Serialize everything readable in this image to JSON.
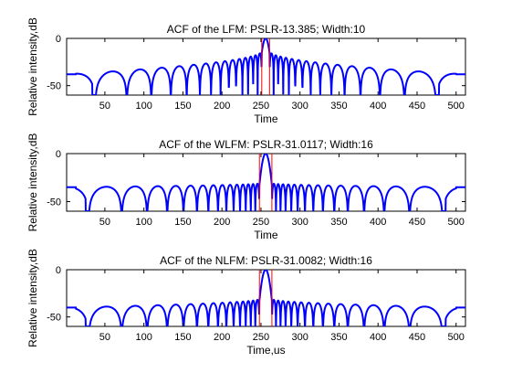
{
  "colors": {
    "series": "#0000ff",
    "marker": "#ff0000",
    "axis": "#000000",
    "background": "#ffffff"
  },
  "chart_data": [
    {
      "type": "line",
      "title": "ACF of the LFM: PSLR-13.385; Width:10",
      "xlabel": "Time",
      "ylabel": "Relative intensity,dB",
      "xlim": [
        1,
        512
      ],
      "ylim": [
        -60,
        0
      ],
      "xticks": [
        50,
        100,
        150,
        200,
        250,
        300,
        350,
        400,
        450,
        500
      ],
      "yticks": [
        -50,
        0
      ],
      "grid": false,
      "center": 256,
      "mainlobe_width": 10,
      "sidelobe_peak_at_center_db": -13.4,
      "sidelobe_floor_db": -38,
      "null_depth_db": -60,
      "flat_edges_db": -38,
      "markers_x": [
        251,
        261
      ]
    },
    {
      "type": "line",
      "title": "ACF of the WLFM: PSLR-31.0117; Width:16",
      "xlabel": "Time",
      "ylabel": "Relative intensity,dB",
      "xlim": [
        1,
        512
      ],
      "ylim": [
        -60,
        0
      ],
      "xticks": [
        50,
        100,
        150,
        200,
        250,
        300,
        350,
        400,
        450,
        500
      ],
      "yticks": [
        -50,
        0
      ],
      "grid": false,
      "center": 256,
      "mainlobe_width": 16,
      "sidelobe_peak_at_center_db": -31,
      "sidelobe_floor_db": -35,
      "null_depth_db": -60,
      "flat_edges_db": -35,
      "markers_x": [
        248,
        264
      ]
    },
    {
      "type": "line",
      "title": "ACF of the NLFM: PSLR-31.0082; Width:16",
      "xlabel": "Time,us",
      "ylabel": "Relative intensity,dB",
      "xlim": [
        1,
        512
      ],
      "ylim": [
        -60,
        0
      ],
      "xticks": [
        50,
        100,
        150,
        200,
        250,
        300,
        350,
        400,
        450,
        500
      ],
      "yticks": [
        -50,
        0
      ],
      "grid": false,
      "center": 256,
      "mainlobe_width": 16,
      "sidelobe_peak_at_center_db": -31,
      "sidelobe_floor_db": -40,
      "null_depth_db": -60,
      "flat_edges_db": -40,
      "markers_x": [
        248,
        264
      ]
    }
  ]
}
